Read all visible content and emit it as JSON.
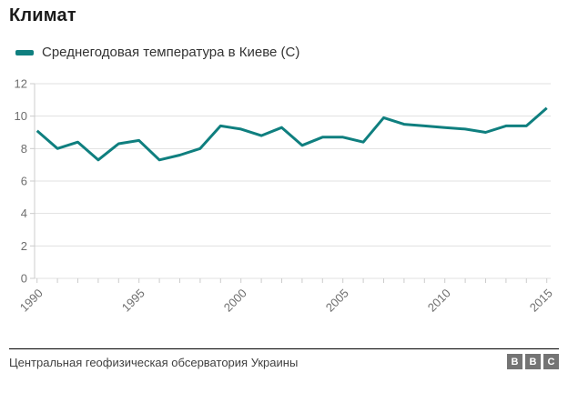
{
  "page": {
    "title": "Климат",
    "legend": {
      "label": "Среднегодовая температура в Киеве (C)",
      "swatch_color": "#0f7f7f"
    },
    "footer": {
      "source": "Центральная геофизическая обсерватория Украины",
      "logo_letters": [
        "B",
        "B",
        "C"
      ]
    }
  },
  "chart_data": {
    "type": "line",
    "title": "Климат",
    "x": [
      1990,
      1991,
      1992,
      1993,
      1994,
      1995,
      1996,
      1997,
      1998,
      1999,
      2000,
      2001,
      2002,
      2003,
      2004,
      2005,
      2006,
      2007,
      2008,
      2009,
      2010,
      2011,
      2012,
      2013,
      2014,
      2015
    ],
    "series": [
      {
        "name": "Среднегодовая температура в Киеве (C)",
        "values": [
          9.1,
          8.0,
          8.4,
          7.3,
          8.3,
          8.5,
          7.3,
          7.6,
          8.0,
          9.4,
          9.2,
          8.8,
          9.3,
          8.2,
          8.7,
          8.7,
          8.4,
          9.9,
          9.5,
          9.4,
          9.3,
          9.2,
          9.0,
          9.4,
          9.4,
          10.5
        ]
      }
    ],
    "xlabel": "",
    "ylabel": "",
    "xticks_labeled": [
      1990,
      1995,
      2000,
      2005,
      2010,
      2015
    ],
    "yticks": [
      0,
      2,
      4,
      6,
      8,
      10,
      12
    ],
    "ylim": [
      0,
      12
    ],
    "line_color": "#0f7f7f",
    "grid": true,
    "grid_color": "#e1e1e1",
    "axis_color": "#cccccc",
    "tick_label_color": "#6e6e6e",
    "legend_position": "top-left"
  }
}
